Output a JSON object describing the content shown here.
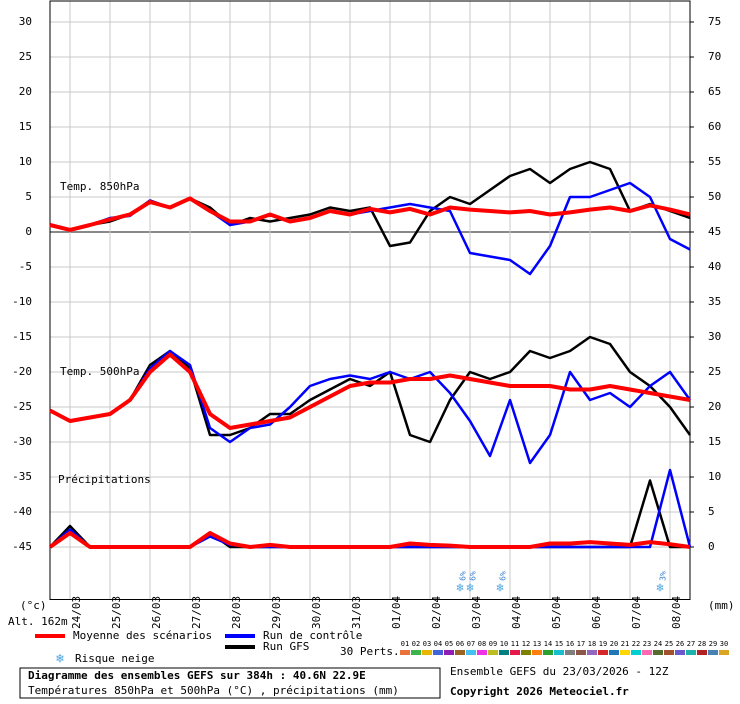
{
  "chart_data": {
    "type": "line",
    "title": "Diagramme des ensembles GEFS sur 384h : 40.6N 22.9E",
    "subtitle": "Températures 850hPa et 500hPa (°C) , précipitations (mm)",
    "run_label": "Ensemble GEFS du 23/03/2026 - 12Z",
    "copyright": "Copyright 2026 Meteociel.fr",
    "ylabel": "(°c)",
    "y2label": "(mm)",
    "altitude": "Alt. 162m",
    "panels": [
      "Temp. 850hPa",
      "Temp. 500hPa",
      "Précipitations"
    ],
    "xlim": [
      0,
      16
    ],
    "xticks": [
      {
        "value": 0.5,
        "label": "24/03"
      },
      {
        "value": 1.5,
        "label": "25/03"
      },
      {
        "value": 2.5,
        "label": "26/03"
      },
      {
        "value": 3.5,
        "label": "27/03"
      },
      {
        "value": 4.5,
        "label": "28/03"
      },
      {
        "value": 5.5,
        "label": "29/03"
      },
      {
        "value": 6.5,
        "label": "30/03"
      },
      {
        "value": 7.5,
        "label": "31/03"
      },
      {
        "value": 8.5,
        "label": "01/04"
      },
      {
        "value": 9.5,
        "label": "02/04"
      },
      {
        "value": 10.5,
        "label": "03/04"
      },
      {
        "value": 11.5,
        "label": "04/04"
      },
      {
        "value": 12.5,
        "label": "05/04"
      },
      {
        "value": 13.5,
        "label": "06/04"
      },
      {
        "value": 14.5,
        "label": "07/04"
      },
      {
        "value": 15.5,
        "label": "08/04"
      }
    ],
    "x": [
      0,
      0.5,
      1,
      1.5,
      2,
      2.5,
      3,
      3.5,
      4,
      4.5,
      5,
      5.5,
      6,
      6.5,
      7,
      7.5,
      8,
      8.5,
      9,
      9.5,
      10,
      10.5,
      11,
      11.5,
      12,
      12.5,
      13,
      13.5,
      14,
      14.5,
      15,
      15.5,
      16
    ],
    "ylim": [
      -52.5,
      33
    ],
    "yticks": [
      30,
      25,
      20,
      15,
      10,
      5,
      0,
      -5,
      -10,
      -15,
      -20,
      -25,
      -30,
      -35,
      -40,
      -45
    ],
    "y2lim": [
      -7.5,
      78
    ],
    "y2ticks": [
      75,
      70,
      65,
      60,
      55,
      50,
      45,
      40,
      35,
      30,
      25,
      20,
      15,
      10,
      5,
      0
    ],
    "grid": true,
    "series": [
      {
        "name": "Moyenne des scénarios",
        "color": "#ff0000",
        "t850": [
          1,
          0.3,
          1,
          1.8,
          2.5,
          4.3,
          3.5,
          4.8,
          3,
          1.5,
          1.5,
          2.5,
          1.5,
          2,
          3,
          2.5,
          3.3,
          2.8,
          3.3,
          2.5,
          3.5,
          3.2,
          3,
          2.8,
          3,
          2.5,
          2.8,
          3.2,
          3.5,
          3,
          3.8,
          3.2,
          2.5
        ],
        "t500": [
          -25.5,
          -27,
          -26.5,
          -26,
          -24,
          -20,
          -17.5,
          -20,
          -26,
          -28,
          -27.5,
          -27,
          -26.5,
          -25,
          -23.5,
          -22,
          -21.5,
          -21.5,
          -21,
          -21,
          -20.5,
          -21,
          -21.5,
          -22,
          -22,
          -22,
          -22.5,
          -22.5,
          -22,
          -22.5,
          -23,
          -23.5,
          -24
        ],
        "precip": [
          0,
          2,
          0,
          0,
          0,
          0,
          0,
          0,
          2,
          0.5,
          0,
          0.3,
          0,
          0,
          0,
          0,
          0,
          0,
          0.5,
          0.3,
          0.2,
          0,
          0,
          0,
          0,
          0.5,
          0.5,
          0.7,
          0.5,
          0.3,
          0.7,
          0.4,
          0
        ]
      },
      {
        "name": "Run de contrôle",
        "color": "#0000ff",
        "t850": [
          1,
          0.3,
          1,
          2,
          2.3,
          4.5,
          3.5,
          4.7,
          3,
          1,
          1.5,
          2.5,
          1.5,
          2,
          3,
          2.5,
          3,
          3.5,
          4,
          3.5,
          3,
          -3,
          -3.5,
          -4,
          -6,
          -2,
          5,
          5,
          6,
          7,
          5,
          -1,
          -2.5
        ],
        "t500": [
          -25.5,
          -27,
          -26.5,
          -26,
          -24,
          -19.5,
          -17,
          -19,
          -28,
          -30,
          -28,
          -27.5,
          -25,
          -22,
          -21,
          -20.5,
          -21,
          -20,
          -21,
          -20,
          -23,
          -27,
          -32,
          -24,
          -33,
          -29,
          -20,
          -24,
          -23,
          -25,
          -22,
          -20,
          -24
        ],
        "precip": [
          0,
          2.5,
          0,
          0,
          0,
          0,
          0,
          0,
          1.5,
          0.3,
          0,
          0,
          0,
          0,
          0,
          0,
          0,
          0,
          0,
          0,
          0,
          0,
          0,
          0,
          0,
          0,
          0,
          0,
          0,
          0,
          0,
          11,
          0
        ]
      },
      {
        "name": "Run GFS",
        "color": "#000000",
        "t850": [
          1,
          0.3,
          1,
          1.5,
          2.5,
          4.5,
          3.5,
          4.8,
          3.5,
          1,
          2,
          1.5,
          2,
          2.5,
          3.5,
          3,
          3.5,
          -2,
          -1.5,
          3,
          5,
          4,
          6,
          8,
          9,
          7,
          9,
          10,
          9,
          3,
          4,
          3,
          2
        ],
        "t500": [
          -25.5,
          -27,
          -26.5,
          -26,
          -24,
          -19,
          -17,
          -19.5,
          -29,
          -29,
          -28,
          -26,
          -26,
          -24,
          -22.5,
          -21,
          -22,
          -20,
          -29,
          -30,
          -24,
          -20,
          -21,
          -20,
          -17,
          -18,
          -17,
          -15,
          -16,
          -20,
          -22,
          -25,
          -29
        ],
        "precip": [
          0,
          3,
          0,
          0,
          0,
          0,
          0,
          0,
          2,
          0,
          0,
          0,
          0,
          0,
          0,
          0,
          0,
          0,
          0,
          0,
          0,
          0,
          0,
          0,
          0,
          0,
          0,
          0,
          0,
          0,
          9.5,
          0,
          0
        ]
      }
    ],
    "snow_legend": "Risque neige",
    "snow_risk": [
      {
        "x": 10.25,
        "label": "6%"
      },
      {
        "x": 10.5,
        "label": "6%"
      },
      {
        "x": 11.25,
        "label": "6%"
      },
      {
        "x": 15.25,
        "label": "3%"
      }
    ],
    "perturbations_label": "30 Perts.",
    "perturbations": [
      {
        "name": "01",
        "color": "#e8743b"
      },
      {
        "name": "02",
        "color": "#3cb44b"
      },
      {
        "name": "03",
        "color": "#e6b800"
      },
      {
        "name": "04",
        "color": "#4363d8"
      },
      {
        "name": "05",
        "color": "#911eb4"
      },
      {
        "name": "06",
        "color": "#9a6324"
      },
      {
        "name": "07",
        "color": "#46c0f0"
      },
      {
        "name": "08",
        "color": "#f032e6"
      },
      {
        "name": "09",
        "color": "#bcbd22"
      },
      {
        "name": "10",
        "color": "#008080"
      },
      {
        "name": "11",
        "color": "#e6194b"
      },
      {
        "name": "12",
        "color": "#808000"
      },
      {
        "name": "13",
        "color": "#ff7f0e"
      },
      {
        "name": "14",
        "color": "#2ca02c"
      },
      {
        "name": "15",
        "color": "#17becf"
      },
      {
        "name": "16",
        "color": "#7f7f7f"
      },
      {
        "name": "17",
        "color": "#8c564b"
      },
      {
        "name": "18",
        "color": "#9467bd"
      },
      {
        "name": "19",
        "color": "#d62728"
      },
      {
        "name": "20",
        "color": "#1f77b4"
      },
      {
        "name": "21",
        "color": "#ffd700"
      },
      {
        "name": "22",
        "color": "#00ced1"
      },
      {
        "name": "23",
        "color": "#ff69b4"
      },
      {
        "name": "24",
        "color": "#556b2f"
      },
      {
        "name": "25",
        "color": "#a0522d"
      },
      {
        "name": "26",
        "color": "#6a5acd"
      },
      {
        "name": "27",
        "color": "#20b2aa"
      },
      {
        "name": "28",
        "color": "#b22222"
      },
      {
        "name": "29",
        "color": "#4682b4"
      },
      {
        "name": "30",
        "color": "#daa520"
      }
    ]
  }
}
